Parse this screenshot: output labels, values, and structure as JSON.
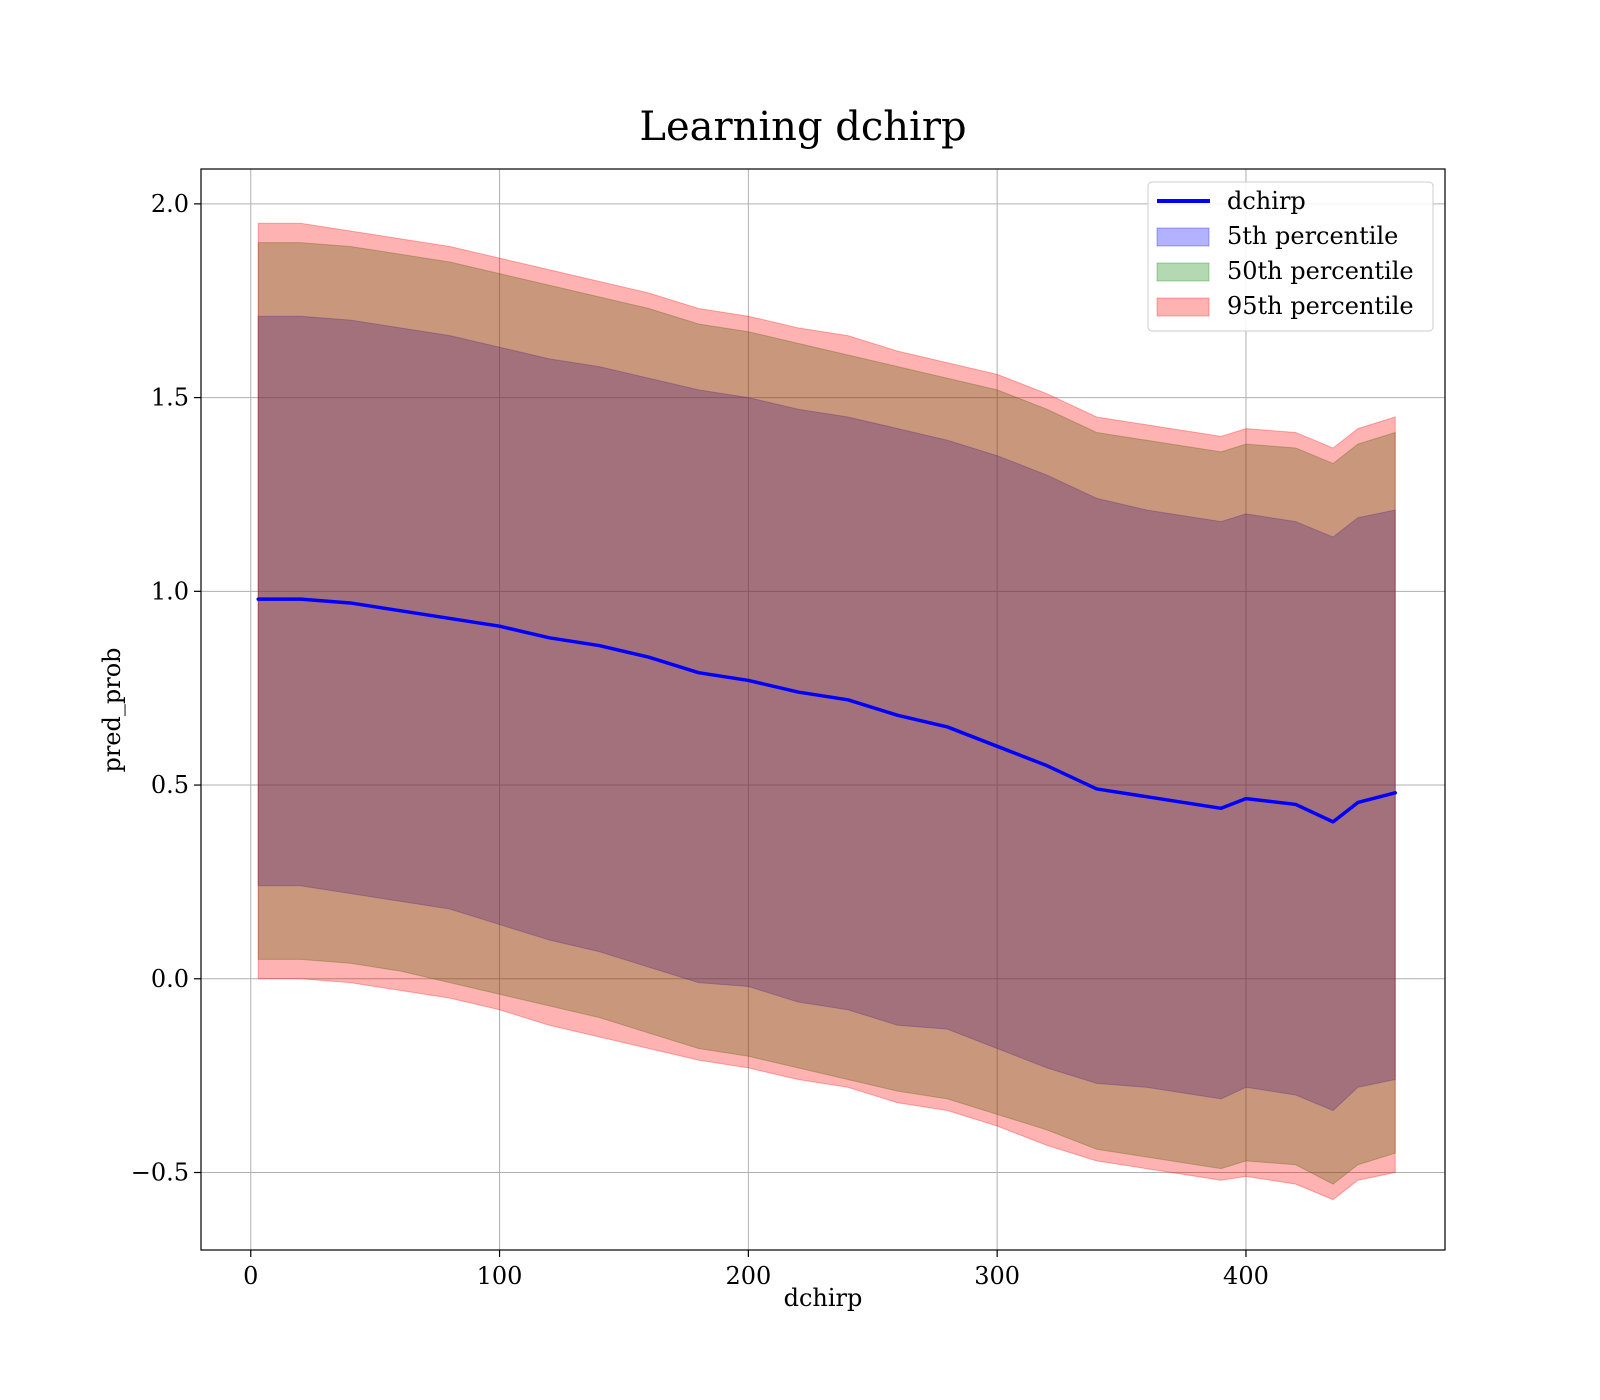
{
  "chart_data": {
    "type": "line",
    "title": "Learning dchirp",
    "xlabel": "dchirp",
    "ylabel": "pred_prob",
    "xlim": [
      -20,
      480
    ],
    "ylim": [
      -0.7,
      2.09
    ],
    "xticks": [
      0,
      100,
      200,
      300,
      400
    ],
    "xtick_labels": [
      "0",
      "100",
      "200",
      "300",
      "400"
    ],
    "yticks": [
      -0.5,
      0.0,
      0.5,
      1.0,
      1.5,
      2.0
    ],
    "ytick_labels": [
      "−0.5",
      "0.0",
      "0.5",
      "1.0",
      "1.5",
      "2.0"
    ],
    "grid": true,
    "legend_position": "top-right",
    "x": [
      3,
      20,
      40,
      60,
      80,
      100,
      120,
      140,
      160,
      180,
      200,
      220,
      240,
      260,
      280,
      300,
      320,
      340,
      360,
      380,
      390,
      400,
      420,
      435,
      445,
      460
    ],
    "series": [
      {
        "name": "dchirp",
        "kind": "line",
        "color": "#0000ff",
        "values": [
          0.98,
          0.98,
          0.97,
          0.95,
          0.93,
          0.91,
          0.88,
          0.86,
          0.83,
          0.79,
          0.77,
          0.74,
          0.72,
          0.68,
          0.65,
          0.6,
          0.55,
          0.49,
          0.47,
          0.45,
          0.44,
          0.465,
          0.45,
          0.405,
          0.455,
          0.48
        ]
      },
      {
        "name": "5th percentile",
        "kind": "band",
        "color": "#0000ff",
        "alpha": 0.3,
        "lower": [
          0.24,
          0.24,
          0.22,
          0.2,
          0.18,
          0.14,
          0.1,
          0.07,
          0.03,
          -0.01,
          -0.02,
          -0.06,
          -0.08,
          -0.12,
          -0.13,
          -0.18,
          -0.23,
          -0.27,
          -0.28,
          -0.3,
          -0.31,
          -0.28,
          -0.3,
          -0.34,
          -0.28,
          -0.26
        ],
        "upper": [
          1.71,
          1.71,
          1.7,
          1.68,
          1.66,
          1.63,
          1.6,
          1.58,
          1.55,
          1.52,
          1.5,
          1.47,
          1.45,
          1.42,
          1.39,
          1.35,
          1.3,
          1.24,
          1.21,
          1.19,
          1.18,
          1.2,
          1.18,
          1.14,
          1.19,
          1.21
        ]
      },
      {
        "name": "50th percentile",
        "kind": "band",
        "color": "#008000",
        "alpha": 0.3,
        "lower": [
          0.05,
          0.05,
          0.04,
          0.02,
          -0.01,
          -0.04,
          -0.07,
          -0.1,
          -0.14,
          -0.18,
          -0.2,
          -0.23,
          -0.26,
          -0.29,
          -0.31,
          -0.35,
          -0.39,
          -0.44,
          -0.46,
          -0.48,
          -0.49,
          -0.47,
          -0.48,
          -0.53,
          -0.48,
          -0.45
        ],
        "upper": [
          1.9,
          1.9,
          1.89,
          1.87,
          1.85,
          1.82,
          1.79,
          1.76,
          1.73,
          1.69,
          1.67,
          1.64,
          1.61,
          1.58,
          1.55,
          1.52,
          1.47,
          1.41,
          1.39,
          1.37,
          1.36,
          1.38,
          1.37,
          1.33,
          1.38,
          1.41
        ]
      },
      {
        "name": "95th percentile",
        "kind": "band",
        "color": "#ff0000",
        "alpha": 0.3,
        "lower": [
          0.0,
          0.0,
          -0.01,
          -0.03,
          -0.05,
          -0.08,
          -0.12,
          -0.15,
          -0.18,
          -0.21,
          -0.23,
          -0.26,
          -0.28,
          -0.32,
          -0.34,
          -0.38,
          -0.43,
          -0.47,
          -0.49,
          -0.51,
          -0.52,
          -0.51,
          -0.53,
          -0.57,
          -0.52,
          -0.5
        ],
        "upper": [
          1.95,
          1.95,
          1.93,
          1.91,
          1.89,
          1.86,
          1.83,
          1.8,
          1.77,
          1.73,
          1.71,
          1.68,
          1.66,
          1.62,
          1.59,
          1.56,
          1.51,
          1.45,
          1.43,
          1.41,
          1.4,
          1.42,
          1.41,
          1.37,
          1.42,
          1.45
        ]
      }
    ]
  }
}
